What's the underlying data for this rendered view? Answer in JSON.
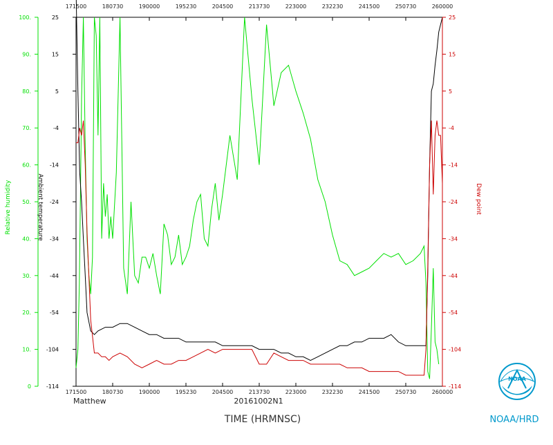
{
  "colors": {
    "rh": "#00e000",
    "temp": "#000000",
    "dew": "#cc0000",
    "axis": "#000000",
    "logo": "#0099cc",
    "text": "#222222"
  },
  "chart_data": {
    "type": "line",
    "storm": "Matthew",
    "flight_id": "20161002N1",
    "xlabel": "TIME (HRMNSC)",
    "x_ticks": [
      "171500",
      "180730",
      "190000",
      "195230",
      "204500",
      "213730",
      "223000",
      "232230",
      "241500",
      "250730",
      "260000"
    ],
    "xlim": [
      0,
      10
    ],
    "left_rh_axis": {
      "label": "Relative humidity",
      "ticks": [
        "0",
        "10.",
        "20.",
        "30.",
        "40.",
        "50.",
        "60.",
        "70.",
        "80.",
        "90.",
        "100."
      ],
      "ylim": [
        0,
        100
      ]
    },
    "left_temp_axis": {
      "label": "Ambient temperature",
      "ticks": [
        "-114",
        "-104",
        "-54",
        "-44",
        "-34",
        "-24",
        "-14",
        "-4",
        "5",
        "15",
        "25"
      ]
    },
    "right_dew_axis": {
      "label": "Dew point",
      "ticks": [
        "-114",
        "-104",
        "-54",
        "-44",
        "-34",
        "-24",
        "-14",
        "-4",
        "5",
        "15",
        "25"
      ]
    },
    "series": [
      {
        "name": "Relative humidity",
        "color": "#00e000",
        "x": [
          0.0,
          0.05,
          0.09,
          0.12,
          0.15,
          0.2,
          0.25,
          0.3,
          0.35,
          0.4,
          0.45,
          0.5,
          0.55,
          0.6,
          0.65,
          0.7,
          0.75,
          0.8,
          0.85,
          0.9,
          0.95,
          1.0,
          1.1,
          1.2,
          1.3,
          1.4,
          1.5,
          1.6,
          1.7,
          1.8,
          1.9,
          2.0,
          2.1,
          2.2,
          2.3,
          2.4,
          2.5,
          2.6,
          2.7,
          2.8,
          2.9,
          3.0,
          3.1,
          3.2,
          3.3,
          3.4,
          3.5,
          3.6,
          3.7,
          3.8,
          3.9,
          4.0,
          4.2,
          4.4,
          4.6,
          4.8,
          5.0,
          5.2,
          5.4,
          5.6,
          5.8,
          6.0,
          6.2,
          6.4,
          6.6,
          6.8,
          7.0,
          7.2,
          7.4,
          7.6,
          7.8,
          8.0,
          8.2,
          8.4,
          8.6,
          8.8,
          9.0,
          9.2,
          9.4,
          9.5,
          9.55,
          9.6,
          9.65,
          9.7,
          9.75,
          9.8,
          9.85,
          9.9
        ],
        "values": [
          5,
          10,
          28,
          52,
          78,
          100,
          65,
          40,
          30,
          25,
          35,
          100,
          95,
          68,
          100,
          40,
          55,
          46,
          52,
          40,
          46,
          40,
          58,
          100,
          32,
          25,
          50,
          30,
          28,
          35,
          35,
          32,
          36,
          30,
          25,
          44,
          41,
          33,
          35,
          41,
          33,
          35,
          38,
          45,
          50,
          52,
          40,
          38,
          48,
          55,
          45,
          52,
          68,
          56,
          100,
          78,
          60,
          98,
          76,
          85,
          87,
          80,
          74,
          67,
          56,
          50,
          41,
          34,
          33,
          30,
          31,
          32,
          34,
          36,
          35,
          36,
          33,
          34,
          36,
          38,
          28,
          4,
          2,
          16,
          32,
          12,
          10,
          6
        ]
      },
      {
        "name": "Ambient temperature",
        "color": "#000000",
        "x": [
          0.0,
          0.05,
          0.1,
          0.15,
          0.2,
          0.25,
          0.3,
          0.4,
          0.5,
          0.6,
          0.8,
          1.0,
          1.2,
          1.4,
          1.6,
          1.8,
          2.0,
          2.2,
          2.4,
          2.6,
          2.8,
          3.0,
          3.2,
          3.4,
          3.6,
          3.8,
          4.0,
          4.2,
          4.4,
          4.6,
          4.8,
          5.0,
          5.2,
          5.4,
          5.6,
          5.8,
          6.0,
          6.2,
          6.4,
          6.6,
          6.8,
          7.0,
          7.2,
          7.4,
          7.6,
          7.8,
          8.0,
          8.2,
          8.4,
          8.6,
          8.8,
          9.0,
          9.2,
          9.4,
          9.55,
          9.6,
          9.65,
          9.7,
          9.75,
          9.8,
          9.85,
          9.9,
          9.95,
          10.0
        ],
        "values": [
          108,
          80,
          58,
          50,
          40,
          30,
          20,
          15,
          14,
          15,
          16,
          16,
          17,
          17,
          16,
          15,
          14,
          14,
          13,
          13,
          13,
          12,
          12,
          12,
          12,
          12,
          11,
          11,
          11,
          11,
          11,
          10,
          10,
          10,
          9,
          9,
          8,
          8,
          7,
          8,
          9,
          10,
          11,
          11,
          12,
          12,
          13,
          13,
          13,
          14,
          12,
          11,
          11,
          11,
          11,
          30,
          60,
          80,
          82,
          87,
          91,
          96,
          98,
          100
        ]
      },
      {
        "name": "Dew point",
        "color": "#cc0000",
        "x": [
          0.0,
          0.05,
          0.1,
          0.15,
          0.2,
          0.25,
          0.3,
          0.4,
          0.5,
          0.6,
          0.7,
          0.8,
          0.9,
          1.0,
          1.2,
          1.4,
          1.6,
          1.8,
          2.0,
          2.2,
          2.4,
          2.6,
          2.8,
          3.0,
          3.2,
          3.4,
          3.6,
          3.8,
          4.0,
          4.2,
          4.4,
          4.6,
          4.8,
          5.0,
          5.2,
          5.4,
          5.6,
          5.8,
          6.0,
          6.2,
          6.4,
          6.6,
          6.8,
          7.0,
          7.2,
          7.4,
          7.6,
          7.8,
          8.0,
          8.2,
          8.4,
          8.6,
          8.8,
          9.0,
          9.2,
          9.4,
          9.45,
          9.5,
          9.55,
          9.6,
          9.65,
          9.7,
          9.75,
          9.8,
          9.85,
          9.9,
          9.95,
          10.0
        ],
        "values": [
          66,
          66,
          70,
          68,
          72,
          60,
          42,
          18,
          9,
          9,
          8,
          8,
          7,
          8,
          9,
          8,
          6,
          5,
          6,
          7,
          6,
          6,
          7,
          7,
          8,
          9,
          10,
          9,
          10,
          10,
          10,
          10,
          10,
          6,
          6,
          9,
          8,
          7,
          7,
          7,
          6,
          6,
          6,
          6,
          6,
          5,
          5,
          5,
          4,
          4,
          4,
          4,
          4,
          3,
          3,
          3,
          3,
          3,
          10,
          32,
          60,
          72,
          52,
          68,
          72,
          68,
          68,
          55
        ]
      }
    ]
  },
  "logo": {
    "caption": "NOAA/HRD",
    "emblem_text": "NOAA"
  }
}
